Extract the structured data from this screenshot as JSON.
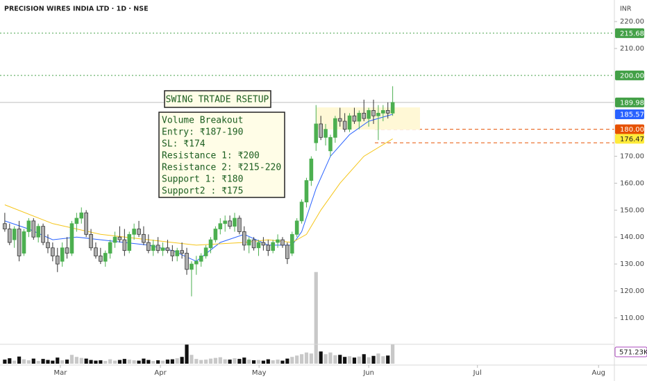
{
  "chart_data": {
    "type": "candlestick",
    "title": "PRECISION WIRES INDIA LTD · 1D · NSE",
    "currency": "INR",
    "xlim": [
      -1,
      127.3
    ],
    "ylim": [
      100.2,
      228
    ],
    "yticks": [
      {
        "value": 110,
        "label": "110.00"
      },
      {
        "value": 120,
        "label": "120.00"
      },
      {
        "value": 130,
        "label": "130.00"
      },
      {
        "value": 140,
        "label": "140.00"
      },
      {
        "value": 150,
        "label": "150.00"
      },
      {
        "value": 160,
        "label": "160.00"
      },
      {
        "value": 170,
        "label": "170.00"
      },
      {
        "value": 210,
        "label": "210.00"
      },
      {
        "value": 220,
        "label": "220.00"
      }
    ],
    "xticks": [
      {
        "value": 11.6,
        "label": "Mar"
      },
      {
        "value": 32.5,
        "label": "Apr"
      },
      {
        "value": 53.1,
        "label": "May"
      },
      {
        "value": 76.0,
        "label": "Jun"
      },
      {
        "value": 98.7,
        "label": "Jul"
      },
      {
        "value": 124.0,
        "label": "Aug"
      }
    ],
    "up_color": "#4caf50",
    "down_color": "#b0b0b0",
    "ohlc": [
      [
        145,
        149,
        142,
        143
      ],
      [
        143,
        145,
        137,
        138
      ],
      [
        139,
        144,
        136,
        143
      ],
      [
        143,
        146,
        131,
        133
      ],
      [
        134,
        143,
        133,
        142
      ],
      [
        142,
        147,
        140,
        146
      ],
      [
        146,
        147,
        139,
        140
      ],
      [
        140,
        145,
        138,
        144
      ],
      [
        144,
        145,
        137,
        138
      ],
      [
        138,
        141,
        134,
        136
      ],
      [
        136,
        138,
        131,
        133
      ],
      [
        133,
        136,
        127,
        130
      ],
      [
        131,
        138,
        129,
        136
      ],
      [
        136,
        140,
        132,
        134
      ],
      [
        134,
        146,
        133,
        145
      ],
      [
        145,
        149,
        142,
        147
      ],
      [
        147,
        151,
        145,
        149
      ],
      [
        149,
        150,
        140,
        141
      ],
      [
        141,
        143,
        135,
        136
      ],
      [
        136,
        138,
        132,
        133
      ],
      [
        133,
        136,
        130,
        131
      ],
      [
        131,
        135,
        129,
        134
      ],
      [
        134,
        139,
        132,
        138
      ],
      [
        138,
        142,
        136,
        140
      ],
      [
        140,
        144,
        138,
        139
      ],
      [
        139,
        143,
        133,
        135
      ],
      [
        135,
        142,
        134,
        141
      ],
      [
        141,
        145,
        139,
        143
      ],
      [
        143,
        146,
        140,
        141
      ],
      [
        141,
        144,
        137,
        138
      ],
      [
        138,
        141,
        134,
        135
      ],
      [
        135,
        139,
        133,
        137
      ],
      [
        137,
        140,
        134,
        135
      ],
      [
        135,
        138,
        133,
        136
      ],
      [
        136,
        139,
        134,
        135
      ],
      [
        135,
        137,
        131,
        133
      ],
      [
        133,
        136,
        131,
        135
      ],
      [
        135,
        138,
        132,
        134
      ],
      [
        134,
        136,
        126,
        128
      ],
      [
        128,
        131,
        118,
        130
      ],
      [
        130,
        133,
        126,
        131
      ],
      [
        131,
        134,
        129,
        133
      ],
      [
        133,
        137,
        132,
        136
      ],
      [
        136,
        140,
        134,
        139
      ],
      [
        139,
        144,
        138,
        143
      ],
      [
        143,
        147,
        141,
        145
      ],
      [
        145,
        148,
        142,
        146
      ],
      [
        146,
        148,
        143,
        144
      ],
      [
        144,
        149,
        142,
        147
      ],
      [
        147,
        148,
        141,
        142
      ],
      [
        142,
        144,
        135,
        137
      ],
      [
        137,
        140,
        134,
        139
      ],
      [
        139,
        140,
        135,
        136
      ],
      [
        136,
        139,
        133,
        138
      ],
      [
        138,
        140,
        135,
        137
      ],
      [
        137,
        139,
        133,
        135
      ],
      [
        135,
        139,
        134,
        138
      ],
      [
        138,
        141,
        136,
        139
      ],
      [
        139,
        140,
        136,
        137
      ],
      [
        137,
        138,
        130,
        132
      ],
      [
        134,
        142,
        133,
        141
      ],
      [
        141,
        147,
        140,
        146
      ],
      [
        146,
        154,
        145,
        153
      ],
      [
        153,
        162,
        151,
        161
      ],
      [
        161,
        170,
        159,
        169
      ],
      [
        175,
        189,
        172,
        182
      ],
      [
        182,
        185,
        176,
        177
      ],
      [
        177,
        182,
        174,
        180
      ],
      [
        172,
        178,
        170,
        177
      ],
      [
        177,
        185,
        175,
        184
      ],
      [
        184,
        188,
        181,
        183
      ],
      [
        183,
        186,
        179,
        180
      ],
      [
        180,
        186,
        179,
        185
      ],
      [
        185,
        188,
        182,
        183
      ],
      [
        183,
        187,
        180,
        186
      ],
      [
        186,
        191,
        183,
        184
      ],
      [
        184,
        188,
        181,
        187
      ],
      [
        187,
        191,
        182,
        185
      ],
      [
        185,
        189,
        176,
        186
      ],
      [
        186,
        189,
        183,
        187
      ],
      [
        187,
        190,
        184,
        186
      ],
      [
        186,
        196,
        185,
        189.98
      ]
    ],
    "volume": [
      120000,
      160000,
      90000,
      210000,
      130000,
      100000,
      150000,
      80000,
      140000,
      110000,
      90000,
      180000,
      100000,
      120000,
      260000,
      200000,
      170000,
      150000,
      110000,
      90000,
      100000,
      80000,
      130000,
      90000,
      110000,
      140000,
      120000,
      100000,
      90000,
      150000,
      110000,
      80000,
      100000,
      90000,
      120000,
      130000,
      160000,
      200000,
      570000,
      260000,
      140000,
      110000,
      120000,
      150000,
      170000,
      190000,
      130000,
      120000,
      160000,
      140000,
      180000,
      120000,
      100000,
      110000,
      90000,
      130000,
      100000,
      120000,
      90000,
      150000,
      200000,
      240000,
      280000,
      330000,
      300000,
      2700000,
      360000,
      280000,
      330000,
      250000,
      260000,
      200000,
      220000,
      180000,
      210000,
      280000,
      190000,
      230000,
      300000,
      220000,
      240000,
      571230
    ],
    "volume_ylim": [
      0,
      4000000
    ],
    "volume_up_color": "#c8c8c8",
    "volume_down_color": "#111111",
    "volume_last_label": "571.23K",
    "ma_lines": [
      {
        "color": "#2962ff",
        "x": [
          0,
          5,
          10,
          15,
          20,
          25,
          30,
          35,
          40,
          45,
          50,
          55,
          60,
          62,
          65,
          68,
          72,
          76,
          81
        ],
        "values": [
          146,
          143,
          139,
          140,
          139,
          138,
          137,
          135,
          131,
          138,
          141,
          137,
          137,
          142,
          158,
          170,
          178,
          183,
          185.57
        ]
      },
      {
        "color": "#f5c518",
        "x": [
          0,
          10,
          20,
          30,
          40,
          50,
          55,
          60,
          63,
          66,
          70,
          75,
          81
        ],
        "values": [
          152,
          145,
          141,
          139,
          137,
          138,
          139,
          138,
          141,
          150,
          160,
          170,
          176.47
        ]
      }
    ],
    "price_levels": [
      {
        "value": 215.68,
        "label": "215.68",
        "color": "#43a047",
        "line": "dotted"
      },
      {
        "value": 200,
        "label": "200.00",
        "color": "#43a047",
        "line": "dotted"
      },
      {
        "value": 189.98,
        "label": "189.98",
        "color": "#43a047",
        "line": "solid"
      },
      {
        "value": 185.57,
        "label": "185.57",
        "color": "#2962ff"
      },
      {
        "value": 180,
        "label": "180.00",
        "color": "#e65100",
        "line": "dashed"
      },
      {
        "value": 176.47,
        "label": "176.47",
        "color": "#ffeb3b"
      },
      {
        "value": 175,
        "color": "#e65100",
        "line": "dashed"
      }
    ],
    "annotation_title": "SWING TRTADE RSETUP",
    "annotation_lines": [
      "Volume Breakout",
      "Entry: ₹187-190",
      "SL: ₹174",
      "Resistance 1: ₹200",
      "Resistance 2: ₹215-220",
      "Support 1: ₹180",
      "Support2 : ₹175"
    ]
  }
}
